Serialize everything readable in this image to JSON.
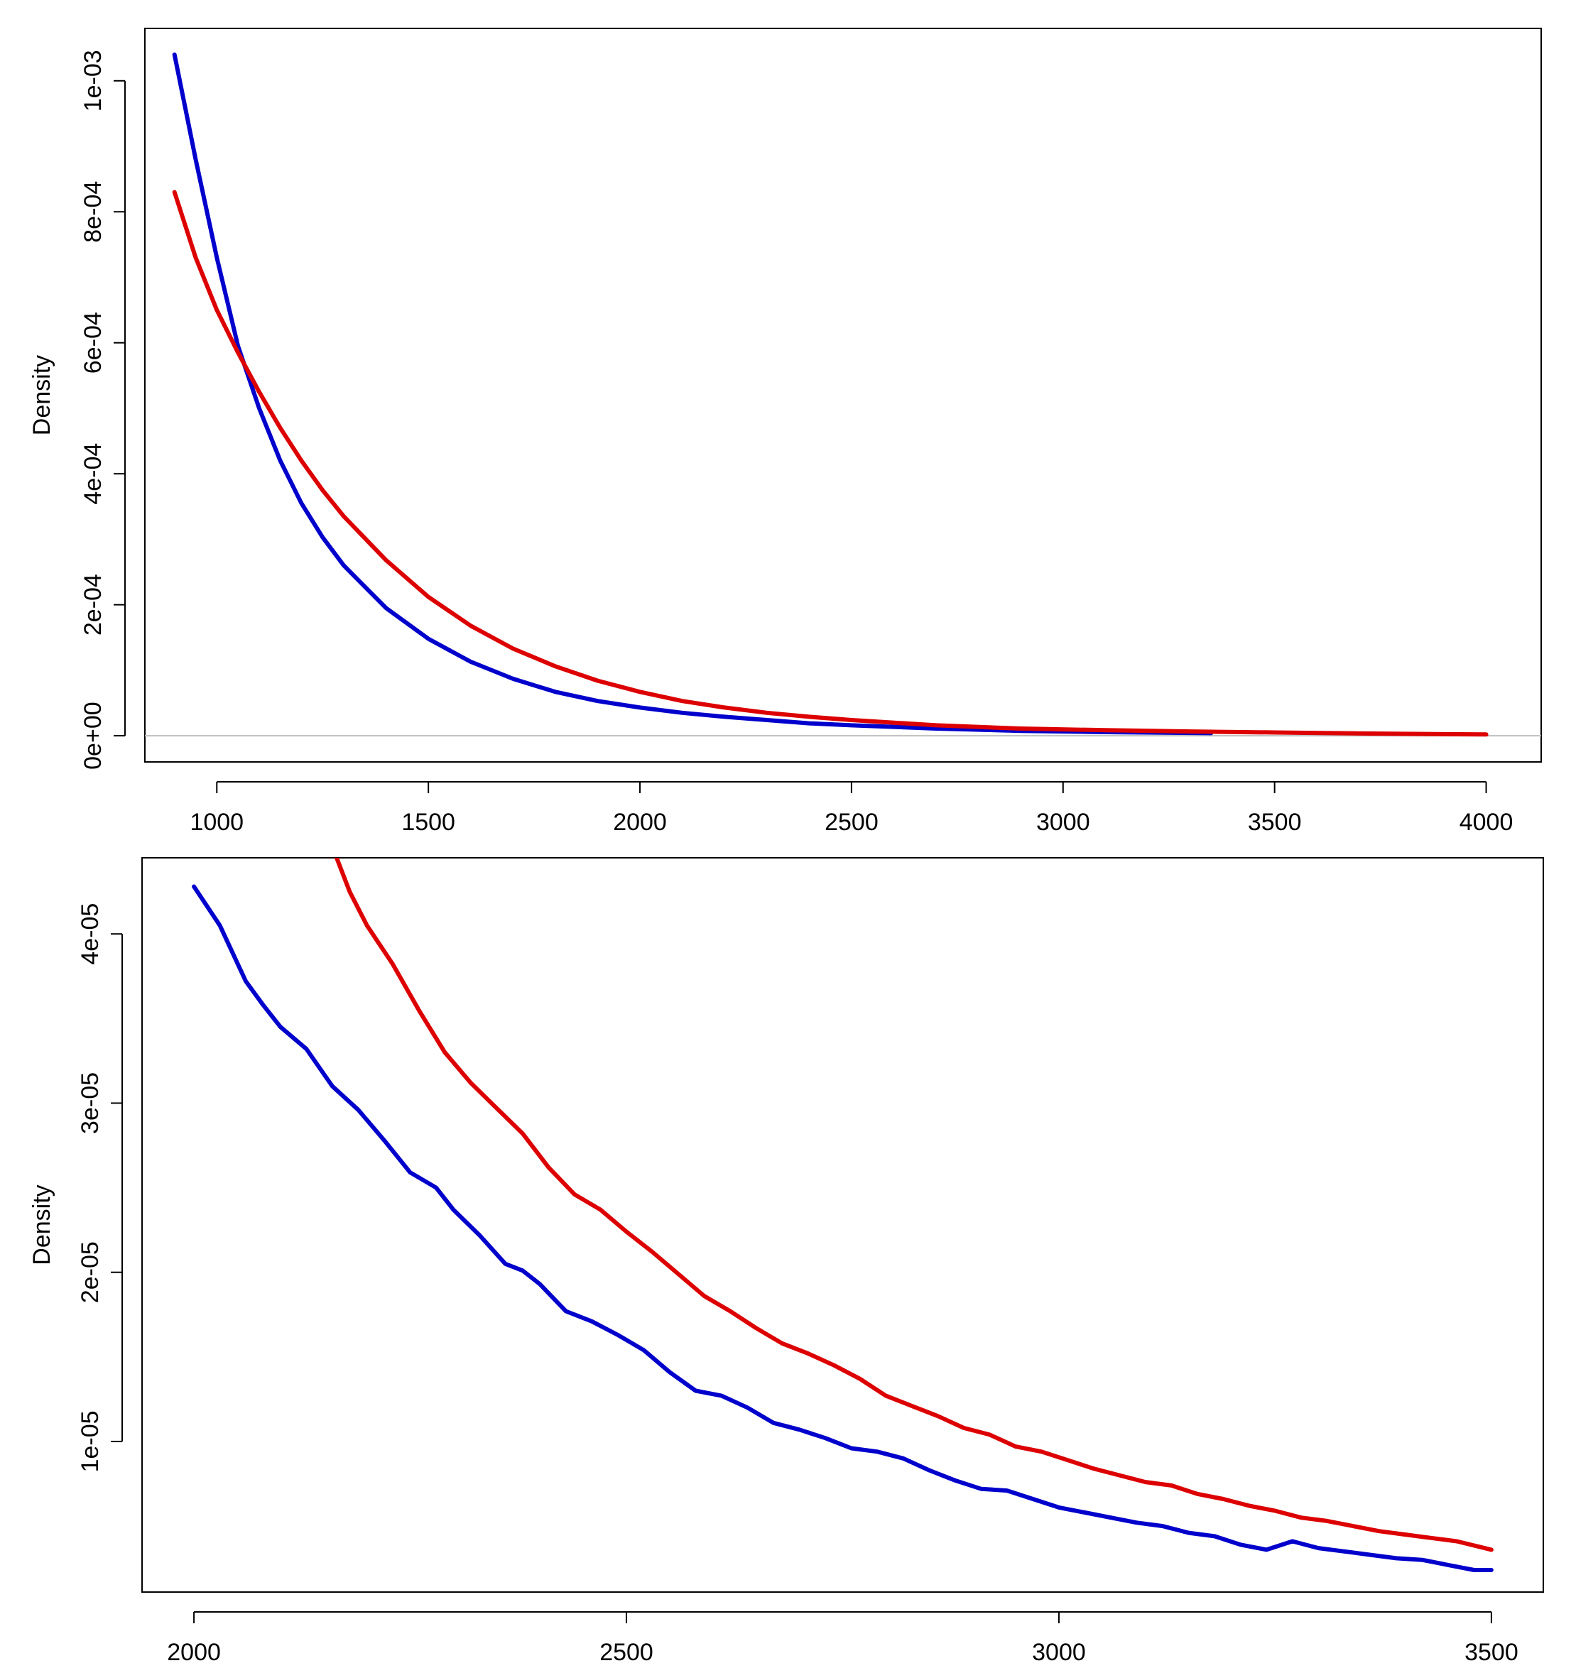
{
  "chart_data": [
    {
      "type": "line",
      "title": "",
      "xlabel": "",
      "ylabel": "Density",
      "xlim": [
        830,
        4130
      ],
      "ylim": [
        -4e-05,
        0.00108
      ],
      "x_ticks": [
        {
          "value": 1000,
          "label": "1000"
        },
        {
          "value": 1500,
          "label": "1500"
        },
        {
          "value": 2000,
          "label": "2000"
        },
        {
          "value": 2500,
          "label": "2500"
        },
        {
          "value": 3000,
          "label": "3000"
        },
        {
          "value": 3500,
          "label": "3500"
        },
        {
          "value": 4000,
          "label": "4000"
        }
      ],
      "y_ticks": [
        {
          "value": 0,
          "label": "0e+00"
        },
        {
          "value": 0.0002,
          "label": "2e-04"
        },
        {
          "value": 0.0004,
          "label": "4e-04"
        },
        {
          "value": 0.0006,
          "label": "6e-04"
        },
        {
          "value": 0.0008,
          "label": "8e-04"
        },
        {
          "value": 0.001,
          "label": "1e-03"
        }
      ],
      "hline": {
        "y": 0,
        "color": "#bebebe"
      },
      "series": [
        {
          "name": "blue",
          "color": "#0000cc",
          "x": [
            900,
            950,
            1000,
            1050,
            1100,
            1150,
            1200,
            1250,
            1300,
            1400,
            1500,
            1600,
            1700,
            1800,
            1900,
            2000,
            2100,
            2200,
            2300,
            2400,
            2500,
            2700,
            2900,
            3100,
            3350
          ],
          "y": [
            0.00104,
            0.00088,
            0.00073,
            0.000595,
            0.0005,
            0.00042,
            0.000355,
            0.000303,
            0.00026,
            0.000195,
            0.000148,
            0.000113,
            8.7e-05,
            6.7e-05,
            5.3e-05,
            4.3e-05,
            3.5e-05,
            2.9e-05,
            2.4e-05,
            1.9e-05,
            1.6e-05,
            1.1e-05,
            7.5e-06,
            5.5e-06,
            4e-06
          ]
        },
        {
          "name": "red",
          "color": "#dd0000",
          "x": [
            900,
            950,
            1000,
            1050,
            1100,
            1150,
            1200,
            1250,
            1300,
            1400,
            1500,
            1600,
            1700,
            1800,
            1900,
            2000,
            2100,
            2200,
            2300,
            2400,
            2500,
            2700,
            2900,
            3100,
            3300,
            3500,
            3700,
            4000
          ],
          "y": [
            0.00083,
            0.00073,
            0.00065,
            0.000585,
            0.000525,
            0.00047,
            0.00042,
            0.000375,
            0.000335,
            0.000268,
            0.000212,
            0.000168,
            0.000133,
            0.000106,
            8.4e-05,
            6.7e-05,
            5.3e-05,
            4.3e-05,
            3.5e-05,
            2.9e-05,
            2.4e-05,
            1.6e-05,
            1.1e-05,
            8.5e-06,
            6.5e-06,
            5e-06,
            3.5e-06,
            2e-06
          ]
        }
      ]
    },
    {
      "type": "line",
      "title": "",
      "xlabel": "",
      "ylabel": "Density",
      "xlim": [
        1940,
        3560
      ],
      "ylim": [
        1.1e-06,
        4.45e-05
      ],
      "x_ticks": [
        {
          "value": 2000,
          "label": "2000"
        },
        {
          "value": 2500,
          "label": "2500"
        },
        {
          "value": 3000,
          "label": "3000"
        },
        {
          "value": 3500,
          "label": "3500"
        }
      ],
      "y_ticks": [
        {
          "value": 1e-05,
          "label": "1e-05"
        },
        {
          "value": 2e-05,
          "label": "2e-05"
        },
        {
          "value": 3e-05,
          "label": "3e-05"
        },
        {
          "value": 4e-05,
          "label": "4e-05"
        }
      ],
      "series": [
        {
          "name": "blue",
          "color": "#0000cc",
          "x": [
            2000,
            2030,
            2060,
            2080,
            2100,
            2130,
            2160,
            2190,
            2220,
            2250,
            2280,
            2300,
            2330,
            2360,
            2380,
            2400,
            2430,
            2460,
            2490,
            2520,
            2550,
            2580,
            2610,
            2640,
            2670,
            2700,
            2730,
            2760,
            2790,
            2820,
            2850,
            2880,
            2910,
            2940,
            2970,
            3000,
            3030,
            3060,
            3090,
            3120,
            3150,
            3180,
            3210,
            3240,
            3270,
            3300,
            3330,
            3360,
            3390,
            3420,
            3450,
            3480,
            3500
          ],
          "y": [
            4.28e-05,
            4.05e-05,
            3.72e-05,
            3.58e-05,
            3.45e-05,
            3.32e-05,
            3.1e-05,
            2.96e-05,
            2.78e-05,
            2.59e-05,
            2.5e-05,
            2.37e-05,
            2.22e-05,
            2.05e-05,
            2.01e-05,
            1.93e-05,
            1.77e-05,
            1.71e-05,
            1.63e-05,
            1.54e-05,
            1.41e-05,
            1.3e-05,
            1.27e-05,
            1.2e-05,
            1.11e-05,
            1.07e-05,
            1.02e-05,
            9.6e-06,
            9.4e-06,
            9e-06,
            8.3e-06,
            7.7e-06,
            7.2e-06,
            7.1e-06,
            6.6e-06,
            6.1e-06,
            5.8e-06,
            5.5e-06,
            5.2e-06,
            5e-06,
            4.6e-06,
            4.4e-06,
            3.9e-06,
            3.6e-06,
            4.1e-06,
            3.7e-06,
            3.5e-06,
            3.3e-06,
            3.1e-06,
            3e-06,
            2.7e-06,
            2.4e-06,
            2.4e-06
          ]
        },
        {
          "name": "red",
          "color": "#dd0000",
          "x": [
            2165,
            2180,
            2200,
            2230,
            2260,
            2290,
            2320,
            2350,
            2380,
            2410,
            2440,
            2470,
            2500,
            2530,
            2560,
            2590,
            2620,
            2650,
            2680,
            2710,
            2740,
            2770,
            2800,
            2830,
            2860,
            2890,
            2920,
            2950,
            2980,
            3010,
            3040,
            3070,
            3100,
            3130,
            3160,
            3190,
            3220,
            3250,
            3280,
            3310,
            3340,
            3370,
            3400,
            3430,
            3460,
            3500
          ],
          "y": [
            4.45e-05,
            4.25e-05,
            4.05e-05,
            3.82e-05,
            3.55e-05,
            3.3e-05,
            3.12e-05,
            2.97e-05,
            2.82e-05,
            2.62e-05,
            2.46e-05,
            2.37e-05,
            2.24e-05,
            2.12e-05,
            1.99e-05,
            1.86e-05,
            1.77e-05,
            1.67e-05,
            1.58e-05,
            1.52e-05,
            1.45e-05,
            1.37e-05,
            1.27e-05,
            1.21e-05,
            1.15e-05,
            1.08e-05,
            1.04e-05,
            9.7e-06,
            9.4e-06,
            8.9e-06,
            8.4e-06,
            8e-06,
            7.6e-06,
            7.4e-06,
            6.9e-06,
            6.6e-06,
            6.2e-06,
            5.9e-06,
            5.5e-06,
            5.3e-06,
            5e-06,
            4.7e-06,
            4.5e-06,
            4.3e-06,
            4.1e-06,
            3.6e-06
          ]
        }
      ]
    }
  ]
}
